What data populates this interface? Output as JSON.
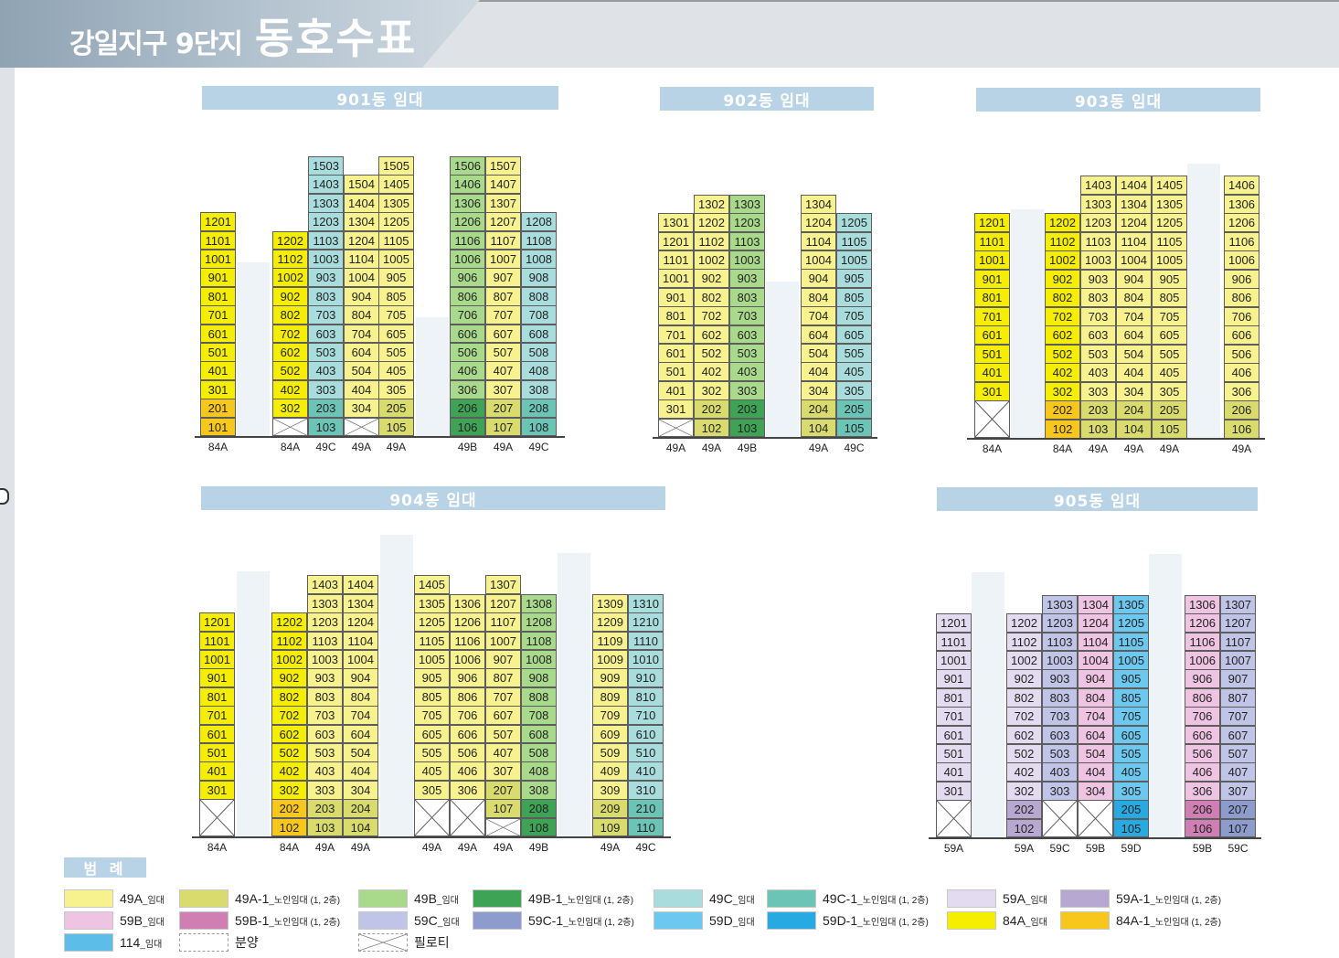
{
  "title": {
    "small": "강일지구 9단지",
    "big": "동호수표"
  },
  "buildings": [
    {
      "header": "901동 임대"
    },
    {
      "header": "902동 임대"
    },
    {
      "header": "903동 임대"
    },
    {
      "header": "904동 임대"
    },
    {
      "header": "905동 임대"
    }
  ],
  "legend": {
    "title": "범 례",
    "items": [
      {
        "code": "49A",
        "tag": "임대",
        "color": "#f7f28d"
      },
      {
        "code": "49A-1",
        "tag": "노인임대 (1, 2층)",
        "color": "#d9dc6c"
      },
      {
        "code": "49B",
        "tag": "임대",
        "color": "#a9d98b"
      },
      {
        "code": "49B-1",
        "tag": "노인임대 (1, 2층)",
        "color": "#3fa356"
      },
      {
        "code": "49C",
        "tag": "임대",
        "color": "#a9dcdc"
      },
      {
        "code": "49C-1",
        "tag": "노인임대 (1, 2층)",
        "color": "#6cc4b7"
      },
      {
        "code": "59A",
        "tag": "임대",
        "color": "#e3dcf0"
      },
      {
        "code": "59A-1",
        "tag": "노인임대 (1, 2층)",
        "color": "#b7a8d2"
      },
      {
        "code": "59B",
        "tag": "임대",
        "color": "#efc3e2"
      },
      {
        "code": "59B-1",
        "tag": "노인임대 (1, 2층)",
        "color": "#cf7fb3"
      },
      {
        "code": "59C",
        "tag": "임대",
        "color": "#c0c5e7"
      },
      {
        "code": "59C-1",
        "tag": "노인임대 (1, 2층)",
        "color": "#8e9bcd"
      },
      {
        "code": "59D",
        "tag": "임대",
        "color": "#6cc8ee"
      },
      {
        "code": "59D-1",
        "tag": "노인임대 (1, 2층)",
        "color": "#27aae1"
      },
      {
        "code": "84A",
        "tag": "임대",
        "color": "#f5ee00"
      },
      {
        "code": "84A-1",
        "tag": "노인임대 (1, 2층)",
        "color": "#f7c71b"
      },
      {
        "code": "114",
        "tag": "임대",
        "color": "#5bbde8"
      },
      {
        "code": "분양",
        "tag": "",
        "color": "#ffffff"
      },
      {
        "code": "필로티",
        "tag": "",
        "color": "#ffffff"
      }
    ]
  },
  "units": {
    "b901": {
      "c0": [
        "1201",
        "1101",
        "1001",
        "901",
        "801",
        "701",
        "601",
        "501",
        "401",
        "301",
        "201",
        "101"
      ],
      "c1": [
        "1202",
        "1102",
        "1002",
        "902",
        "802",
        "702",
        "602",
        "502",
        "402",
        "302"
      ],
      "c2": [
        "1503",
        "1403",
        "1303",
        "1203",
        "1103",
        "1003",
        "903",
        "803",
        "703",
        "603",
        "503",
        "403",
        "303",
        "203",
        "103"
      ],
      "c3": [
        "1504",
        "1404",
        "1304",
        "1204",
        "1104",
        "1004",
        "904",
        "804",
        "704",
        "604",
        "504",
        "404",
        "304"
      ],
      "c4": [
        "1505",
        "1405",
        "1305",
        "1205",
        "1105",
        "1005",
        "905",
        "805",
        "705",
        "605",
        "505",
        "405",
        "305",
        "205",
        "105"
      ],
      "c5": [
        "1506",
        "1406",
        "1306",
        "1206",
        "1106",
        "1006",
        "906",
        "806",
        "706",
        "606",
        "506",
        "406",
        "306",
        "206",
        "106"
      ],
      "c6": [
        "1507",
        "1407",
        "1307",
        "1207",
        "1107",
        "1007",
        "907",
        "807",
        "707",
        "607",
        "507",
        "407",
        "307",
        "207",
        "107"
      ],
      "c7": [
        "1208",
        "1108",
        "1008",
        "908",
        "808",
        "708",
        "608",
        "508",
        "408",
        "308",
        "208",
        "108"
      ]
    },
    "b902": {
      "c0": [
        "1301",
        "1201",
        "1101",
        "1001",
        "901",
        "801",
        "701",
        "601",
        "501",
        "401",
        "301"
      ],
      "c1": [
        "1302",
        "1202",
        "1102",
        "1002",
        "902",
        "802",
        "702",
        "602",
        "502",
        "402",
        "302",
        "202",
        "102"
      ],
      "c2": [
        "1303",
        "1203",
        "1103",
        "1003",
        "903",
        "803",
        "703",
        "603",
        "503",
        "403",
        "303",
        "203",
        "103"
      ],
      "c3": [
        "1304",
        "1204",
        "1104",
        "1004",
        "904",
        "804",
        "704",
        "604",
        "504",
        "404",
        "304",
        "204",
        "104"
      ],
      "c4": [
        "1205",
        "1105",
        "1005",
        "905",
        "805",
        "705",
        "605",
        "505",
        "405",
        "305",
        "205",
        "105"
      ]
    },
    "b903": {
      "c0": [
        "1201",
        "1101",
        "1001",
        "901",
        "801",
        "701",
        "601",
        "501",
        "401",
        "301"
      ],
      "c1": [
        "1202",
        "1102",
        "1002",
        "902",
        "802",
        "702",
        "602",
        "502",
        "402",
        "302",
        "202",
        "102"
      ],
      "c2": [
        "1403",
        "1303",
        "1203",
        "1103",
        "1003",
        "903",
        "803",
        "703",
        "603",
        "503",
        "403",
        "303",
        "203",
        "103"
      ],
      "c3": [
        "1404",
        "1304",
        "1204",
        "1104",
        "1004",
        "904",
        "804",
        "704",
        "604",
        "504",
        "404",
        "304",
        "204",
        "104"
      ],
      "c4": [
        "1405",
        "1305",
        "1205",
        "1105",
        "1005",
        "905",
        "805",
        "705",
        "605",
        "505",
        "405",
        "305",
        "205",
        "105"
      ],
      "c5": [
        "1406",
        "1306",
        "1206",
        "1106",
        "1006",
        "906",
        "806",
        "706",
        "606",
        "506",
        "406",
        "306",
        "206",
        "106"
      ]
    },
    "b904": {
      "c0": [
        "1201",
        "1101",
        "1001",
        "901",
        "801",
        "701",
        "601",
        "501",
        "401",
        "301"
      ],
      "c1": [
        "1202",
        "1102",
        "1002",
        "902",
        "802",
        "702",
        "602",
        "502",
        "402",
        "302",
        "202",
        "102"
      ],
      "c2": [
        "1403",
        "1303",
        "1203",
        "1103",
        "1003",
        "903",
        "803",
        "703",
        "603",
        "503",
        "403",
        "303",
        "203",
        "103"
      ],
      "c3": [
        "1404",
        "1304",
        "1204",
        "1104",
        "1004",
        "904",
        "804",
        "704",
        "604",
        "504",
        "404",
        "304",
        "204",
        "104"
      ],
      "c4": [
        "1405",
        "1305",
        "1205",
        "1105",
        "1005",
        "905",
        "805",
        "705",
        "605",
        "505",
        "405",
        "305"
      ],
      "c5": [
        "1306",
        "1206",
        "1106",
        "1006",
        "906",
        "806",
        "706",
        "606",
        "506",
        "406",
        "306"
      ],
      "c6": [
        "1307",
        "1207",
        "1107",
        "1007",
        "907",
        "807",
        "707",
        "607",
        "507",
        "407",
        "307",
        "207",
        "107"
      ],
      "c7": [
        "1308",
        "1208",
        "1108",
        "1008",
        "908",
        "808",
        "708",
        "608",
        "508",
        "408",
        "308",
        "208",
        "108"
      ],
      "c8": [
        "1309",
        "1209",
        "1109",
        "1009",
        "909",
        "809",
        "709",
        "609",
        "509",
        "409",
        "309",
        "209",
        "109"
      ],
      "c9": [
        "1310",
        "1210",
        "1110",
        "1010",
        "910",
        "810",
        "710",
        "610",
        "510",
        "410",
        "310",
        "210",
        "110"
      ]
    },
    "b905": {
      "c0": [
        "1201",
        "1101",
        "1001",
        "901",
        "801",
        "701",
        "601",
        "501",
        "401",
        "301"
      ],
      "c1": [
        "1202",
        "1102",
        "1002",
        "902",
        "802",
        "702",
        "602",
        "502",
        "402",
        "302",
        "202",
        "102"
      ],
      "c2": [
        "1303",
        "1203",
        "1103",
        "1003",
        "903",
        "803",
        "703",
        "603",
        "503",
        "403",
        "303"
      ],
      "c3": [
        "1304",
        "1204",
        "1104",
        "1004",
        "904",
        "804",
        "704",
        "604",
        "504",
        "404",
        "304"
      ],
      "c4": [
        "1305",
        "1205",
        "1105",
        "1005",
        "905",
        "805",
        "705",
        "605",
        "505",
        "405",
        "305",
        "205",
        "105"
      ],
      "c5": [
        "1306",
        "1206",
        "1106",
        "1006",
        "906",
        "806",
        "706",
        "606",
        "506",
        "406",
        "306",
        "206",
        "106"
      ],
      "c6": [
        "1307",
        "1207",
        "1107",
        "1007",
        "907",
        "807",
        "707",
        "607",
        "507",
        "407",
        "307",
        "207",
        "107"
      ]
    }
  },
  "types": {
    "b901": [
      "84A",
      "84A",
      "49C",
      "49A",
      "49A",
      "49B",
      "49A",
      "49C"
    ],
    "b902": [
      "49A",
      "49A",
      "49B",
      "49A",
      "49C"
    ],
    "b903": [
      "84A",
      "84A",
      "49A",
      "49A",
      "49A",
      "49A"
    ],
    "b904": [
      "84A",
      "84A",
      "49A",
      "49A",
      "49A",
      "49A",
      "49A",
      "49B",
      "49A",
      "49C"
    ],
    "b905": [
      "59A",
      "59A",
      "59C",
      "59B",
      "59D",
      "59B",
      "59C"
    ]
  }
}
